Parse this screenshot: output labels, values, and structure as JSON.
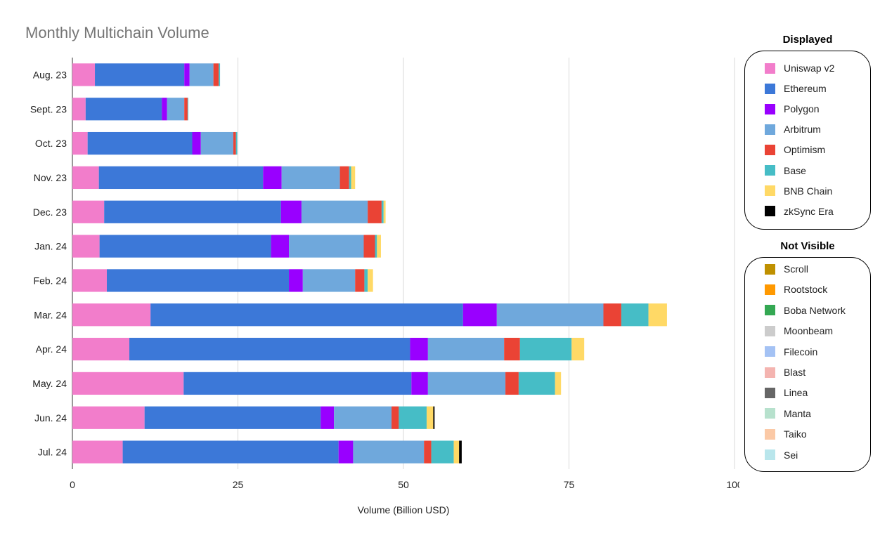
{
  "chart_data": {
    "type": "bar",
    "orientation": "horizontal",
    "stacked": true,
    "title": "Monthly Multichain Volume",
    "xlabel": "Volume (Billion USD)",
    "ylabel": "",
    "xlim": [
      0,
      100
    ],
    "x_ticks": [
      "0",
      "25",
      "50",
      "75",
      "100"
    ],
    "x_tick_values": [
      0,
      25,
      50,
      75,
      100
    ],
    "grid": true,
    "categories": [
      "Aug. 23",
      "Sept. 23",
      "Oct. 23",
      "Nov. 23",
      "Dec. 23",
      "Jan. 24",
      "Feb. 24",
      "Mar. 24",
      "Apr. 24",
      "May. 24",
      "Jun. 24",
      "Jul. 24"
    ],
    "series": [
      {
        "name": "Uniswap v2",
        "color": "#f27dcb",
        "values": [
          3.4,
          2.0,
          2.3,
          4.0,
          4.8,
          4.1,
          5.2,
          11.8,
          8.6,
          16.8,
          10.9,
          7.6
        ]
      },
      {
        "name": "Ethereum",
        "color": "#3c78d8",
        "values": [
          13.5,
          11.5,
          15.8,
          24.8,
          26.7,
          25.9,
          27.5,
          47.2,
          42.4,
          34.4,
          26.6,
          32.6
        ]
      },
      {
        "name": "Polygon",
        "color": "#9900ff",
        "values": [
          0.8,
          0.8,
          1.3,
          2.8,
          3.1,
          2.7,
          2.1,
          5.1,
          2.7,
          2.5,
          2.0,
          2.2
        ]
      },
      {
        "name": "Arbitrum",
        "color": "#6fa8dc",
        "values": [
          3.6,
          2.6,
          4.9,
          8.8,
          10.0,
          11.3,
          7.9,
          16.1,
          11.5,
          11.7,
          8.7,
          10.7
        ]
      },
      {
        "name": "Optimism",
        "color": "#ea4335",
        "values": [
          0.8,
          0.5,
          0.4,
          1.4,
          2.1,
          1.7,
          1.4,
          2.7,
          2.4,
          2.0,
          1.1,
          1.1
        ]
      },
      {
        "name": "Base",
        "color": "#46bdc6",
        "values": [
          0.2,
          0.1,
          0.2,
          0.3,
          0.3,
          0.3,
          0.5,
          4.1,
          7.8,
          5.5,
          4.2,
          3.4
        ]
      },
      {
        "name": "BNB Chain",
        "color": "#ffd966",
        "values": [
          0.0,
          0.0,
          0.0,
          0.6,
          0.3,
          0.6,
          0.8,
          2.8,
          1.9,
          0.9,
          1.0,
          0.8
        ]
      },
      {
        "name": "zkSync Era",
        "color": "#000000",
        "values": [
          0.0,
          0.0,
          0.0,
          0.0,
          0.0,
          0.0,
          0.0,
          0.0,
          0.0,
          0.0,
          0.2,
          0.4
        ]
      },
      {
        "name": "Scroll",
        "color": "#bf9000",
        "values": [
          0,
          0,
          0,
          0,
          0,
          0,
          0,
          0,
          0,
          0,
          0,
          0
        ]
      },
      {
        "name": "Rootstock",
        "color": "#ff9900",
        "values": [
          0,
          0,
          0,
          0,
          0,
          0,
          0,
          0,
          0,
          0,
          0,
          0
        ]
      },
      {
        "name": "Boba Network",
        "color": "#34a853",
        "values": [
          0,
          0,
          0,
          0,
          0,
          0,
          0,
          0,
          0,
          0,
          0,
          0
        ]
      },
      {
        "name": "Moonbeam",
        "color": "#cccccc",
        "values": [
          0,
          0,
          0,
          0,
          0,
          0,
          0,
          0,
          0,
          0,
          0,
          0
        ]
      },
      {
        "name": "Filecoin",
        "color": "#a4c2f4",
        "values": [
          0,
          0,
          0,
          0,
          0,
          0,
          0,
          0,
          0,
          0,
          0,
          0
        ]
      },
      {
        "name": "Blast",
        "color": "#f4b4b0",
        "values": [
          0,
          0,
          0,
          0,
          0,
          0,
          0,
          0,
          0,
          0,
          0,
          0
        ]
      },
      {
        "name": "Linea",
        "color": "#666666",
        "values": [
          0,
          0,
          0,
          0,
          0,
          0,
          0,
          0,
          0,
          0,
          0,
          0
        ]
      },
      {
        "name": "Manta",
        "color": "#b7e1cd",
        "values": [
          0,
          0,
          0,
          0,
          0,
          0,
          0,
          0,
          0,
          0,
          0,
          0
        ]
      },
      {
        "name": "Taiko",
        "color": "#fbc9a6",
        "values": [
          0,
          0,
          0,
          0,
          0,
          0,
          0,
          0,
          0,
          0,
          0,
          0
        ]
      },
      {
        "name": "Sei",
        "color": "#b9e6ec",
        "values": [
          0,
          0,
          0,
          0,
          0,
          0,
          0,
          0,
          0,
          0,
          0,
          0
        ]
      }
    ]
  },
  "legend": {
    "displayed_heading": "Displayed",
    "displayed_items": [
      {
        "label": "Uniswap v2",
        "color": "#f27dcb"
      },
      {
        "label": "Ethereum",
        "color": "#3c78d8"
      },
      {
        "label": "Polygon",
        "color": "#9900ff"
      },
      {
        "label": "Arbitrum",
        "color": "#6fa8dc"
      },
      {
        "label": "Optimism",
        "color": "#ea4335"
      },
      {
        "label": "Base",
        "color": "#46bdc6"
      },
      {
        "label": "BNB Chain",
        "color": "#ffd966"
      },
      {
        "label": "zkSync Era",
        "color": "#000000"
      }
    ],
    "hidden_heading": "Not Visible",
    "hidden_items": [
      {
        "label": "Scroll",
        "color": "#bf9000"
      },
      {
        "label": "Rootstock",
        "color": "#ff9900"
      },
      {
        "label": "Boba Network",
        "color": "#34a853"
      },
      {
        "label": "Moonbeam",
        "color": "#cccccc"
      },
      {
        "label": "Filecoin",
        "color": "#a4c2f4"
      },
      {
        "label": "Blast",
        "color": "#f4b4b0"
      },
      {
        "label": "Linea",
        "color": "#666666"
      },
      {
        "label": "Manta",
        "color": "#b7e1cd"
      },
      {
        "label": "Taiko",
        "color": "#fbc9a6"
      },
      {
        "label": "Sei",
        "color": "#b9e6ec"
      }
    ]
  }
}
